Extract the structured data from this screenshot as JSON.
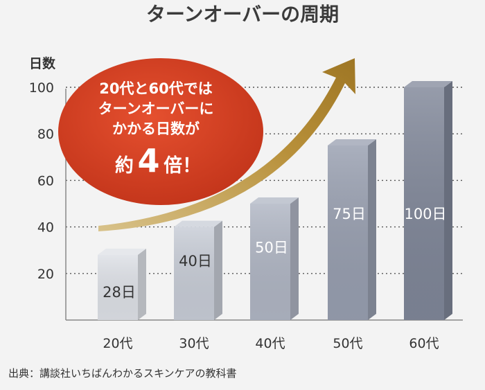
{
  "chart_data": {
    "type": "bar",
    "title": "ターンオーバーの周期",
    "ylabel": "日数",
    "xlabel": "",
    "categories": [
      "20代",
      "30代",
      "40代",
      "50代",
      "60代"
    ],
    "values": [
      28,
      40,
      50,
      75,
      100
    ],
    "data_labels": [
      "28日",
      "40日",
      "50日",
      "75日",
      "100日"
    ],
    "yticks": [
      20,
      40,
      60,
      80,
      100
    ],
    "ylim": [
      0,
      100
    ],
    "grid": "dotted horizontal",
    "bar_style": "3d",
    "bar_colors": [
      "#dde0e6",
      "#c7ccd6",
      "#afb5c3",
      "#979eaf",
      "#7f8698"
    ],
    "callout": {
      "lines": [
        "20代と60代では",
        "ターンオーバーに",
        "かかる日数が"
      ],
      "emphasis_prefix": "約",
      "emphasis_number": "4",
      "emphasis_suffix": "倍！",
      "color": "#d03a1e"
    },
    "arrow_color": "#b38a2e",
    "source": "出典：講談社いちばんわかるスキンケアの教科書"
  }
}
